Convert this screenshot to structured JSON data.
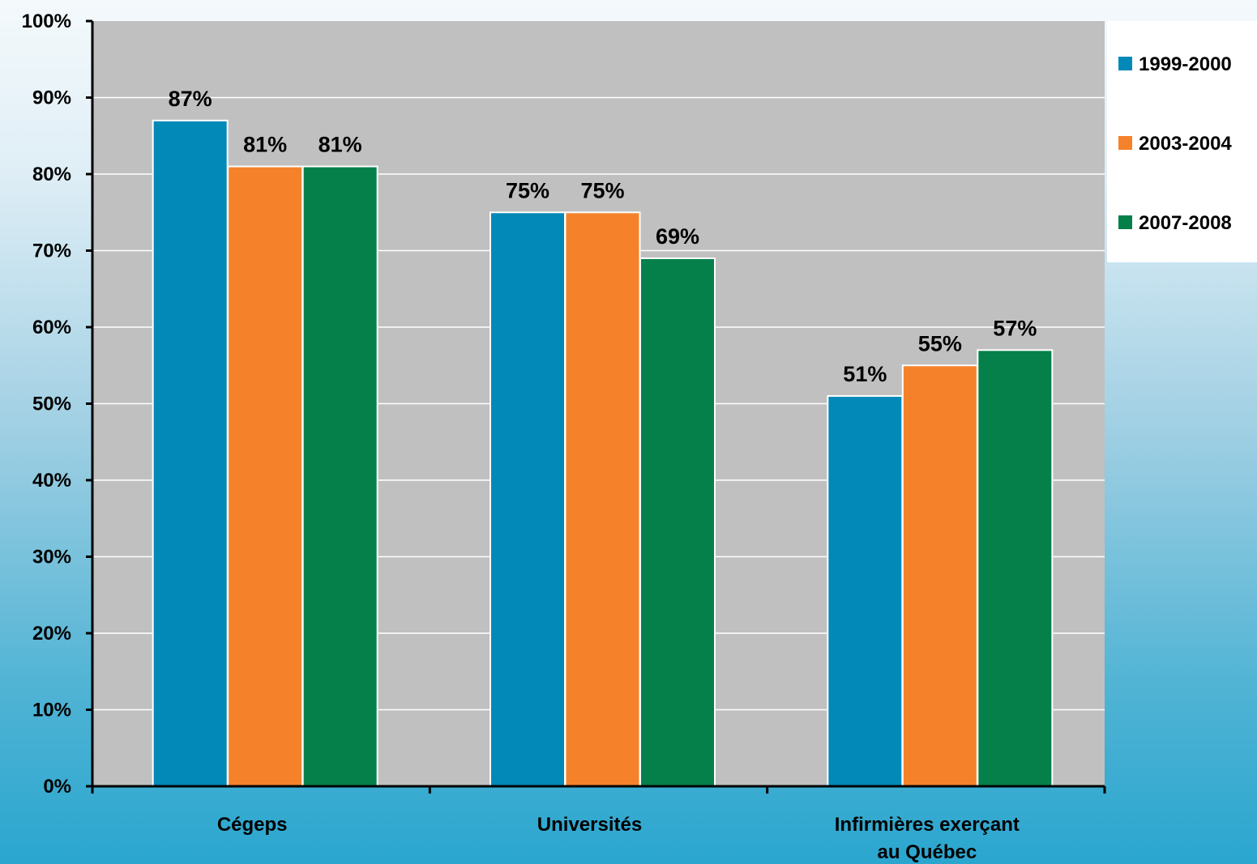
{
  "chart_data": {
    "type": "bar",
    "title": "",
    "xlabel": "",
    "ylabel": "",
    "ylim": [
      0,
      100
    ],
    "yticks": [
      "0%",
      "10%",
      "20%",
      "30%",
      "40%",
      "50%",
      "60%",
      "70%",
      "80%",
      "90%",
      "100%"
    ],
    "categories": [
      [
        "Cégeps"
      ],
      [
        "Universités"
      ],
      [
        "Infirmières exerçant",
        "au Québec"
      ]
    ],
    "series": [
      {
        "name": "1999-2000",
        "color": "#0289b8",
        "values": [
          87,
          75,
          51
        ],
        "labels": [
          "87%",
          "75%",
          "51%"
        ]
      },
      {
        "name": "2003-2004",
        "color": "#f5822a",
        "values": [
          81,
          75,
          55
        ],
        "labels": [
          "81%",
          "75%",
          "55%"
        ]
      },
      {
        "name": "2007-2008",
        "color": "#06804a",
        "values": [
          81,
          69,
          57
        ],
        "labels": [
          "81%",
          "69%",
          "57%"
        ]
      }
    ],
    "legend_position": "top-right",
    "grid": true,
    "plot_background": "#c0c0c0"
  }
}
